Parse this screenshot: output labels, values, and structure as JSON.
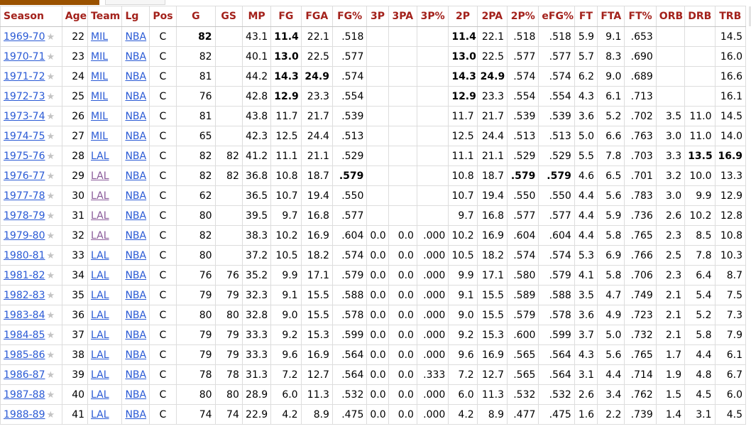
{
  "columns": [
    {
      "key": "season",
      "label": "Season"
    },
    {
      "key": "age",
      "label": "Age"
    },
    {
      "key": "team",
      "label": "Team"
    },
    {
      "key": "lg",
      "label": "Lg"
    },
    {
      "key": "pos",
      "label": "Pos"
    },
    {
      "key": "g",
      "label": "G"
    },
    {
      "key": "gs",
      "label": "GS"
    },
    {
      "key": "mp",
      "label": "MP"
    },
    {
      "key": "fg",
      "label": "FG"
    },
    {
      "key": "fga",
      "label": "FGA"
    },
    {
      "key": "fg_pct",
      "label": "FG%"
    },
    {
      "key": "fg3",
      "label": "3P"
    },
    {
      "key": "fg3a",
      "label": "3PA"
    },
    {
      "key": "fg3_pct",
      "label": "3P%"
    },
    {
      "key": "fg2",
      "label": "2P"
    },
    {
      "key": "fg2a",
      "label": "2PA"
    },
    {
      "key": "fg2_pct",
      "label": "2P%"
    },
    {
      "key": "efg_pct",
      "label": "eFG%"
    },
    {
      "key": "ft",
      "label": "FT"
    },
    {
      "key": "fta",
      "label": "FTA"
    },
    {
      "key": "ft_pct",
      "label": "FT%"
    },
    {
      "key": "orb",
      "label": "ORB"
    },
    {
      "key": "drb",
      "label": "DRB"
    },
    {
      "key": "trb",
      "label": "TRB"
    }
  ],
  "star_glyph": "★",
  "rows": [
    {
      "season": "1969-70",
      "age": "22",
      "team": "MIL",
      "lg": "NBA",
      "pos": "C",
      "g": "82",
      "gs": "",
      "mp": "43.1",
      "fg": "11.4",
      "fga": "22.1",
      "fg_pct": ".518",
      "fg3": "",
      "fg3a": "",
      "fg3_pct": "",
      "fg2": "11.4",
      "fg2a": "22.1",
      "fg2_pct": ".518",
      "efg_pct": ".518",
      "ft": "5.9",
      "fta": "9.1",
      "ft_pct": ".653",
      "orb": "",
      "drb": "",
      "trb": "14.5",
      "bold": [
        "g",
        "fg",
        "fg2"
      ]
    },
    {
      "season": "1970-71",
      "age": "23",
      "team": "MIL",
      "lg": "NBA",
      "pos": "C",
      "g": "82",
      "gs": "",
      "mp": "40.1",
      "fg": "13.0",
      "fga": "22.5",
      "fg_pct": ".577",
      "fg3": "",
      "fg3a": "",
      "fg3_pct": "",
      "fg2": "13.0",
      "fg2a": "22.5",
      "fg2_pct": ".577",
      "efg_pct": ".577",
      "ft": "5.7",
      "fta": "8.3",
      "ft_pct": ".690",
      "orb": "",
      "drb": "",
      "trb": "16.0",
      "bold": [
        "fg",
        "fg2"
      ]
    },
    {
      "season": "1971-72",
      "age": "24",
      "team": "MIL",
      "lg": "NBA",
      "pos": "C",
      "g": "81",
      "gs": "",
      "mp": "44.2",
      "fg": "14.3",
      "fga": "24.9",
      "fg_pct": ".574",
      "fg3": "",
      "fg3a": "",
      "fg3_pct": "",
      "fg2": "14.3",
      "fg2a": "24.9",
      "fg2_pct": ".574",
      "efg_pct": ".574",
      "ft": "6.2",
      "fta": "9.0",
      "ft_pct": ".689",
      "orb": "",
      "drb": "",
      "trb": "16.6",
      "bold": [
        "fg",
        "fga",
        "fg2",
        "fg2a"
      ]
    },
    {
      "season": "1972-73",
      "age": "25",
      "team": "MIL",
      "lg": "NBA",
      "pos": "C",
      "g": "76",
      "gs": "",
      "mp": "42.8",
      "fg": "12.9",
      "fga": "23.3",
      "fg_pct": ".554",
      "fg3": "",
      "fg3a": "",
      "fg3_pct": "",
      "fg2": "12.9",
      "fg2a": "23.3",
      "fg2_pct": ".554",
      "efg_pct": ".554",
      "ft": "4.3",
      "fta": "6.1",
      "ft_pct": ".713",
      "orb": "",
      "drb": "",
      "trb": "16.1",
      "bold": [
        "fg",
        "fg2"
      ]
    },
    {
      "season": "1973-74",
      "age": "26",
      "team": "MIL",
      "lg": "NBA",
      "pos": "C",
      "g": "81",
      "gs": "",
      "mp": "43.8",
      "fg": "11.7",
      "fga": "21.7",
      "fg_pct": ".539",
      "fg3": "",
      "fg3a": "",
      "fg3_pct": "",
      "fg2": "11.7",
      "fg2a": "21.7",
      "fg2_pct": ".539",
      "efg_pct": ".539",
      "ft": "3.6",
      "fta": "5.2",
      "ft_pct": ".702",
      "orb": "3.5",
      "drb": "11.0",
      "trb": "14.5",
      "bold": []
    },
    {
      "season": "1974-75",
      "age": "27",
      "team": "MIL",
      "lg": "NBA",
      "pos": "C",
      "g": "65",
      "gs": "",
      "mp": "42.3",
      "fg": "12.5",
      "fga": "24.4",
      "fg_pct": ".513",
      "fg3": "",
      "fg3a": "",
      "fg3_pct": "",
      "fg2": "12.5",
      "fg2a": "24.4",
      "fg2_pct": ".513",
      "efg_pct": ".513",
      "ft": "5.0",
      "fta": "6.6",
      "ft_pct": ".763",
      "orb": "3.0",
      "drb": "11.0",
      "trb": "14.0",
      "bold": []
    },
    {
      "season": "1975-76",
      "age": "28",
      "team": "LAL",
      "lg": "NBA",
      "pos": "C",
      "g": "82",
      "gs": "82",
      "mp": "41.2",
      "fg": "11.1",
      "fga": "21.1",
      "fg_pct": ".529",
      "fg3": "",
      "fg3a": "",
      "fg3_pct": "",
      "fg2": "11.1",
      "fg2a": "21.1",
      "fg2_pct": ".529",
      "efg_pct": ".529",
      "ft": "5.5",
      "fta": "7.8",
      "ft_pct": ".703",
      "orb": "3.3",
      "drb": "13.5",
      "trb": "16.9",
      "bold": [
        "drb",
        "trb"
      ]
    },
    {
      "season": "1976-77",
      "age": "29",
      "team": "LAL",
      "lg": "NBA",
      "pos": "C",
      "g": "82",
      "gs": "82",
      "mp": "36.8",
      "fg": "10.8",
      "fga": "18.7",
      "fg_pct": ".579",
      "fg3": "",
      "fg3a": "",
      "fg3_pct": "",
      "fg2": "10.8",
      "fg2a": "18.7",
      "fg2_pct": ".579",
      "efg_pct": ".579",
      "ft": "4.6",
      "fta": "6.5",
      "ft_pct": ".701",
      "orb": "3.2",
      "drb": "10.0",
      "trb": "13.3",
      "bold": [
        "fg_pct",
        "fg2_pct",
        "efg_pct"
      ],
      "visited": true
    },
    {
      "season": "1977-78",
      "age": "30",
      "team": "LAL",
      "lg": "NBA",
      "pos": "C",
      "g": "62",
      "gs": "",
      "mp": "36.5",
      "fg": "10.7",
      "fga": "19.4",
      "fg_pct": ".550",
      "fg3": "",
      "fg3a": "",
      "fg3_pct": "",
      "fg2": "10.7",
      "fg2a": "19.4",
      "fg2_pct": ".550",
      "efg_pct": ".550",
      "ft": "4.4",
      "fta": "5.6",
      "ft_pct": ".783",
      "orb": "3.0",
      "drb": "9.9",
      "trb": "12.9",
      "bold": [],
      "visited": true
    },
    {
      "season": "1978-79",
      "age": "31",
      "team": "LAL",
      "lg": "NBA",
      "pos": "C",
      "g": "80",
      "gs": "",
      "mp": "39.5",
      "fg": "9.7",
      "fga": "16.8",
      "fg_pct": ".577",
      "fg3": "",
      "fg3a": "",
      "fg3_pct": "",
      "fg2": "9.7",
      "fg2a": "16.8",
      "fg2_pct": ".577",
      "efg_pct": ".577",
      "ft": "4.4",
      "fta": "5.9",
      "ft_pct": ".736",
      "orb": "2.6",
      "drb": "10.2",
      "trb": "12.8",
      "bold": [],
      "visited": true
    },
    {
      "season": "1979-80",
      "age": "32",
      "team": "LAL",
      "lg": "NBA",
      "pos": "C",
      "g": "82",
      "gs": "",
      "mp": "38.3",
      "fg": "10.2",
      "fga": "16.9",
      "fg_pct": ".604",
      "fg3": "0.0",
      "fg3a": "0.0",
      "fg3_pct": ".000",
      "fg2": "10.2",
      "fg2a": "16.9",
      "fg2_pct": ".604",
      "efg_pct": ".604",
      "ft": "4.4",
      "fta": "5.8",
      "ft_pct": ".765",
      "orb": "2.3",
      "drb": "8.5",
      "trb": "10.8",
      "bold": [],
      "visited": true
    },
    {
      "season": "1980-81",
      "age": "33",
      "team": "LAL",
      "lg": "NBA",
      "pos": "C",
      "g": "80",
      "gs": "",
      "mp": "37.2",
      "fg": "10.5",
      "fga": "18.2",
      "fg_pct": ".574",
      "fg3": "0.0",
      "fg3a": "0.0",
      "fg3_pct": ".000",
      "fg2": "10.5",
      "fg2a": "18.2",
      "fg2_pct": ".574",
      "efg_pct": ".574",
      "ft": "5.3",
      "fta": "6.9",
      "ft_pct": ".766",
      "orb": "2.5",
      "drb": "7.8",
      "trb": "10.3",
      "bold": []
    },
    {
      "season": "1981-82",
      "age": "34",
      "team": "LAL",
      "lg": "NBA",
      "pos": "C",
      "g": "76",
      "gs": "76",
      "mp": "35.2",
      "fg": "9.9",
      "fga": "17.1",
      "fg_pct": ".579",
      "fg3": "0.0",
      "fg3a": "0.0",
      "fg3_pct": ".000",
      "fg2": "9.9",
      "fg2a": "17.1",
      "fg2_pct": ".580",
      "efg_pct": ".579",
      "ft": "4.1",
      "fta": "5.8",
      "ft_pct": ".706",
      "orb": "2.3",
      "drb": "6.4",
      "trb": "8.7",
      "bold": []
    },
    {
      "season": "1982-83",
      "age": "35",
      "team": "LAL",
      "lg": "NBA",
      "pos": "C",
      "g": "79",
      "gs": "79",
      "mp": "32.3",
      "fg": "9.1",
      "fga": "15.5",
      "fg_pct": ".588",
      "fg3": "0.0",
      "fg3a": "0.0",
      "fg3_pct": ".000",
      "fg2": "9.1",
      "fg2a": "15.5",
      "fg2_pct": ".589",
      "efg_pct": ".588",
      "ft": "3.5",
      "fta": "4.7",
      "ft_pct": ".749",
      "orb": "2.1",
      "drb": "5.4",
      "trb": "7.5",
      "bold": []
    },
    {
      "season": "1983-84",
      "age": "36",
      "team": "LAL",
      "lg": "NBA",
      "pos": "C",
      "g": "80",
      "gs": "80",
      "mp": "32.8",
      "fg": "9.0",
      "fga": "15.5",
      "fg_pct": ".578",
      "fg3": "0.0",
      "fg3a": "0.0",
      "fg3_pct": ".000",
      "fg2": "9.0",
      "fg2a": "15.5",
      "fg2_pct": ".579",
      "efg_pct": ".578",
      "ft": "3.6",
      "fta": "4.9",
      "ft_pct": ".723",
      "orb": "2.1",
      "drb": "5.2",
      "trb": "7.3",
      "bold": []
    },
    {
      "season": "1984-85",
      "age": "37",
      "team": "LAL",
      "lg": "NBA",
      "pos": "C",
      "g": "79",
      "gs": "79",
      "mp": "33.3",
      "fg": "9.2",
      "fga": "15.3",
      "fg_pct": ".599",
      "fg3": "0.0",
      "fg3a": "0.0",
      "fg3_pct": ".000",
      "fg2": "9.2",
      "fg2a": "15.3",
      "fg2_pct": ".600",
      "efg_pct": ".599",
      "ft": "3.7",
      "fta": "5.0",
      "ft_pct": ".732",
      "orb": "2.1",
      "drb": "5.8",
      "trb": "7.9",
      "bold": []
    },
    {
      "season": "1985-86",
      "age": "38",
      "team": "LAL",
      "lg": "NBA",
      "pos": "C",
      "g": "79",
      "gs": "79",
      "mp": "33.3",
      "fg": "9.6",
      "fga": "16.9",
      "fg_pct": ".564",
      "fg3": "0.0",
      "fg3a": "0.0",
      "fg3_pct": ".000",
      "fg2": "9.6",
      "fg2a": "16.9",
      "fg2_pct": ".565",
      "efg_pct": ".564",
      "ft": "4.3",
      "fta": "5.6",
      "ft_pct": ".765",
      "orb": "1.7",
      "drb": "4.4",
      "trb": "6.1",
      "bold": []
    },
    {
      "season": "1986-87",
      "age": "39",
      "team": "LAL",
      "lg": "NBA",
      "pos": "C",
      "g": "78",
      "gs": "78",
      "mp": "31.3",
      "fg": "7.2",
      "fga": "12.7",
      "fg_pct": ".564",
      "fg3": "0.0",
      "fg3a": "0.0",
      "fg3_pct": ".333",
      "fg2": "7.2",
      "fg2a": "12.7",
      "fg2_pct": ".565",
      "efg_pct": ".564",
      "ft": "3.1",
      "fta": "4.4",
      "ft_pct": ".714",
      "orb": "1.9",
      "drb": "4.8",
      "trb": "6.7",
      "bold": []
    },
    {
      "season": "1987-88",
      "age": "40",
      "team": "LAL",
      "lg": "NBA",
      "pos": "C",
      "g": "80",
      "gs": "80",
      "mp": "28.9",
      "fg": "6.0",
      "fga": "11.3",
      "fg_pct": ".532",
      "fg3": "0.0",
      "fg3a": "0.0",
      "fg3_pct": ".000",
      "fg2": "6.0",
      "fg2a": "11.3",
      "fg2_pct": ".532",
      "efg_pct": ".532",
      "ft": "2.6",
      "fta": "3.4",
      "ft_pct": ".762",
      "orb": "1.5",
      "drb": "4.5",
      "trb": "6.0",
      "bold": []
    },
    {
      "season": "1988-89",
      "age": "41",
      "team": "LAL",
      "lg": "NBA",
      "pos": "C",
      "g": "74",
      "gs": "74",
      "mp": "22.9",
      "fg": "4.2",
      "fga": "8.9",
      "fg_pct": ".475",
      "fg3": "0.0",
      "fg3a": "0.0",
      "fg3_pct": ".000",
      "fg2": "4.2",
      "fg2a": "8.9",
      "fg2_pct": ".477",
      "efg_pct": ".475",
      "ft": "1.6",
      "fta": "2.2",
      "ft_pct": ".739",
      "orb": "1.4",
      "drb": "3.1",
      "trb": "4.5",
      "bold": []
    }
  ],
  "colors": {
    "header_text": "#a3211b",
    "link": "#2a5ad5",
    "visited_link": "#8a5b9a",
    "tab_accent": "#9a5200",
    "star": "#c3c3c3"
  }
}
